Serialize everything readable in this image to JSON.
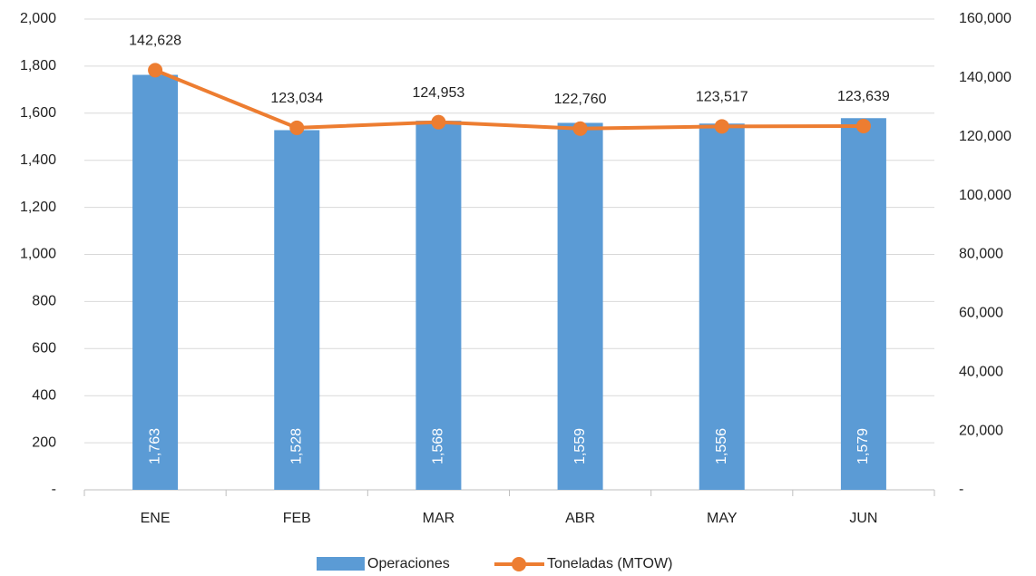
{
  "chart_data": {
    "type": "combo",
    "categories": [
      "ENE",
      "FEB",
      "MAR",
      "ABR",
      "MAY",
      "JUN"
    ],
    "series": [
      {
        "name": "Operaciones",
        "type": "bar",
        "color": "#5b9bd5",
        "values": [
          1763,
          1528,
          1568,
          1559,
          1556,
          1579
        ],
        "value_labels": [
          "1,763",
          "1,528",
          "1,568",
          "1,559",
          "1,556",
          "1,579"
        ]
      },
      {
        "name": "Toneladas (MTOW)",
        "type": "line",
        "axis": "y2",
        "color": "#ed7d31",
        "values": [
          142628,
          123034,
          124953,
          122760,
          123517,
          123639
        ],
        "value_labels": [
          "142,628",
          "123,034",
          "124,953",
          "122,760",
          "123,517",
          "123,639"
        ]
      }
    ],
    "ylim": [
      0,
      2000
    ],
    "yticks": [
      {
        "value": 0,
        "label": "-"
      },
      200,
      400,
      600,
      800,
      {
        "value": 1000,
        "label": "1,000"
      },
      {
        "value": 1200,
        "label": "1,200"
      },
      {
        "value": 1400,
        "label": "1,400"
      },
      {
        "value": 1600,
        "label": "1,600"
      },
      {
        "value": 1800,
        "label": "1,800"
      },
      {
        "value": 2000,
        "label": "2,000"
      }
    ],
    "y2lim": [
      0,
      160000
    ],
    "y2ticks": [
      {
        "value": 0,
        "label": "-"
      },
      {
        "value": 20000,
        "label": "20,000"
      },
      {
        "value": 40000,
        "label": "40,000"
      },
      {
        "value": 60000,
        "label": "60,000"
      },
      {
        "value": 80000,
        "label": "80,000"
      },
      {
        "value": 100000,
        "label": "100,000"
      },
      {
        "value": 120000,
        "label": "120,000"
      },
      {
        "value": 140000,
        "label": "140,000"
      },
      {
        "value": 160000,
        "label": "160,000"
      }
    ],
    "grid": true,
    "legend": "bottom"
  }
}
